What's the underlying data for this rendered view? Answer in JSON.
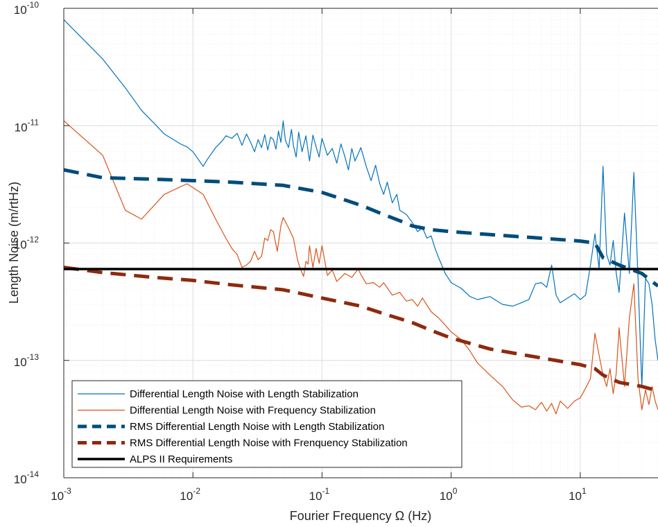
{
  "chart_data": {
    "type": "line",
    "title": "",
    "xlabel": "Fourier Frequency Ω (Hz)",
    "ylabel": "Length Noise (m/rtHz)",
    "x_scale": "log",
    "y_scale": "log",
    "xlim": [
      0.001,
      40
    ],
    "ylim": [
      1e-14,
      1e-10
    ],
    "grid": true,
    "minor_grid": true,
    "legend_position": "bottom-left",
    "x_ticks": [
      {
        "base": "10",
        "exp": "-3",
        "value": 0.001
      },
      {
        "base": "10",
        "exp": "-2",
        "value": 0.01
      },
      {
        "base": "10",
        "exp": "-1",
        "value": 0.1
      },
      {
        "base": "10",
        "exp": "0",
        "value": 1
      },
      {
        "base": "10",
        "exp": "1",
        "value": 10
      }
    ],
    "y_ticks": [
      {
        "base": "10",
        "exp": "-10",
        "value": 1e-10
      },
      {
        "base": "10",
        "exp": "-11",
        "value": 1e-11
      },
      {
        "base": "10",
        "exp": "-12",
        "value": 1e-12
      },
      {
        "base": "10",
        "exp": "-13",
        "value": 1e-13
      },
      {
        "base": "10",
        "exp": "-14",
        "value": 1e-14
      }
    ],
    "series": [
      {
        "name": "Differential Length Noise with Length Stabilization",
        "color": "#0072BD",
        "style": "solid",
        "width": 1.2,
        "x": [
          0.001,
          0.002,
          0.003,
          0.004,
          0.005,
          0.006,
          0.008,
          0.009,
          0.01,
          0.012,
          0.013,
          0.015,
          0.017,
          0.018,
          0.02,
          0.022,
          0.024,
          0.026,
          0.028,
          0.03,
          0.032,
          0.034,
          0.036,
          0.038,
          0.04,
          0.042,
          0.044,
          0.046,
          0.048,
          0.05,
          0.052,
          0.055,
          0.058,
          0.06,
          0.063,
          0.066,
          0.07,
          0.075,
          0.08,
          0.085,
          0.09,
          0.095,
          0.1,
          0.11,
          0.12,
          0.13,
          0.14,
          0.15,
          0.16,
          0.17,
          0.18,
          0.2,
          0.22,
          0.24,
          0.26,
          0.28,
          0.3,
          0.32,
          0.35,
          0.38,
          0.4,
          0.45,
          0.5,
          0.55,
          0.6,
          0.65,
          0.7,
          0.75,
          0.8,
          0.9,
          1.0,
          1.2,
          1.4,
          1.6,
          2.0,
          2.5,
          3.0,
          3.5,
          4.0,
          4.5,
          5.0,
          5.5,
          6.0,
          6.5,
          7.0,
          8.0,
          9.0,
          10.0,
          11.0,
          12.0,
          13.0,
          14.0,
          15.0,
          16.0,
          17.0,
          18.0,
          19.0,
          20.0,
          22.0,
          24.0,
          26.0,
          28.0,
          30.0,
          32.0,
          34.0,
          36.0,
          38.0,
          40.0
        ],
        "y": [
          8e-11,
          3.7e-11,
          2.1e-11,
          1.35e-11,
          1.05e-11,
          8.5e-12,
          7e-12,
          6.6e-12,
          6e-12,
          4.5e-12,
          5.2e-12,
          6.5e-12,
          7.5e-12,
          8.2e-12,
          7.8e-12,
          8.6e-12,
          6.8e-12,
          8.5e-12,
          7.2e-12,
          6e-12,
          7.6e-12,
          6.5e-12,
          8.4e-12,
          6.2e-12,
          8e-12,
          7.6e-12,
          6.3e-12,
          9e-12,
          7.2e-12,
          1.1e-11,
          7.5e-12,
          6.5e-12,
          9.3e-12,
          6.8e-12,
          5.4e-12,
          8.8e-12,
          6e-12,
          8.2e-12,
          5e-12,
          8.3e-12,
          6.6e-12,
          5.4e-12,
          7.8e-12,
          5.6e-12,
          6.4e-12,
          4.8e-12,
          7e-12,
          5.5e-12,
          4.2e-12,
          6.4e-12,
          5e-12,
          6.5e-12,
          4.5e-12,
          3.4e-12,
          4.6e-12,
          3.2e-12,
          2.6e-12,
          3.3e-12,
          2.2e-12,
          2.6e-12,
          1.9e-12,
          1.75e-12,
          1.5e-12,
          1.25e-12,
          1.35e-12,
          1.1e-12,
          1.15e-12,
          9e-13,
          7.5e-13,
          5.5e-13,
          4.6e-13,
          4.1e-13,
          3.5e-13,
          3.3e-13,
          3.5e-13,
          3e-13,
          2.9e-13,
          3.1e-13,
          3.3e-13,
          4.5e-13,
          4.6e-13,
          4.2e-13,
          6.5e-13,
          3.6e-13,
          3.1e-13,
          3.4e-13,
          3.7e-13,
          3.3e-13,
          3.6e-13,
          6.5e-13,
          1.2e-12,
          6e-13,
          4.5e-12,
          8e-13,
          6.5e-13,
          1.05e-12,
          5.5e-13,
          3.8e-13,
          1.8e-12,
          5.5e-13,
          4e-12,
          5e-13,
          6e-14,
          5e-13,
          4.5e-13,
          3e-13,
          1.5e-13,
          1e-13
        ]
      },
      {
        "name": "Differential Length Noise with Frequency Stabilization",
        "color": "#D95319",
        "style": "solid",
        "width": 1.2,
        "x": [
          0.001,
          0.002,
          0.003,
          0.004,
          0.006,
          0.009,
          0.012,
          0.015,
          0.018,
          0.02,
          0.022,
          0.024,
          0.026,
          0.028,
          0.03,
          0.032,
          0.034,
          0.036,
          0.038,
          0.04,
          0.042,
          0.045,
          0.048,
          0.05,
          0.055,
          0.06,
          0.065,
          0.068,
          0.072,
          0.075,
          0.078,
          0.08,
          0.085,
          0.09,
          0.095,
          0.1,
          0.11,
          0.12,
          0.13,
          0.15,
          0.17,
          0.19,
          0.2,
          0.22,
          0.25,
          0.28,
          0.3,
          0.35,
          0.4,
          0.45,
          0.5,
          0.55,
          0.6,
          0.7,
          0.8,
          0.9,
          1.0,
          1.2,
          1.4,
          1.6,
          2.0,
          2.5,
          3.0,
          3.5,
          4.0,
          4.5,
          5.0,
          5.5,
          6.0,
          6.5,
          7.0,
          8.0,
          9.0,
          10.0,
          11.0,
          12.0,
          13.0,
          14.0,
          15.0,
          16.0,
          17.0,
          18.0,
          19.0,
          20.0,
          22.0,
          24.0,
          26.0,
          28.0,
          30.0,
          32.0,
          34.0,
          36.0,
          38.0,
          40.0
        ],
        "y": [
          1.1e-11,
          5.6e-12,
          1.9e-12,
          1.6e-12,
          2.6e-12,
          3.2e-12,
          2.6e-12,
          1.6e-12,
          1.1e-12,
          9e-13,
          8e-13,
          6.2e-13,
          6.5e-13,
          7e-13,
          8.5e-13,
          7.2e-13,
          7.7e-13,
          1.1e-12,
          1.05e-12,
          1.3e-12,
          1.25e-12,
          8.5e-13,
          1.4e-12,
          1.65e-12,
          1.35e-12,
          1.1e-12,
          7e-13,
          6e-13,
          5.2e-13,
          7e-13,
          6.6e-13,
          9.5e-13,
          6.2e-13,
          9e-13,
          6.7e-13,
          9.5e-13,
          5.3e-13,
          5.9e-13,
          4.7e-13,
          5.5e-13,
          5.1e-13,
          6e-13,
          5.4e-13,
          4.5e-13,
          4.6e-13,
          4.2e-13,
          4.6e-13,
          3.6e-13,
          3.8e-13,
          3.2e-13,
          3.3e-13,
          2.9e-13,
          3.4e-13,
          2.6e-13,
          2.3e-13,
          2e-13,
          1.75e-13,
          1.5e-13,
          1.2e-13,
          9.5e-14,
          7.5e-14,
          6e-14,
          4.6e-14,
          4e-14,
          4.1e-14,
          3.8e-14,
          4.4e-14,
          3.7e-14,
          4.3e-14,
          3.5e-14,
          4.5e-14,
          3.9e-14,
          4.5e-14,
          4.8e-14,
          5.8e-14,
          7e-14,
          1.7e-13,
          1.1e-13,
          7.5e-14,
          6e-14,
          8.5e-14,
          5.2e-14,
          7.8e-14,
          1.9e-13,
          6e-14,
          2.3e-13,
          4.5e-13,
          7e-14,
          3.8e-14,
          5.6e-14,
          4.2e-14,
          6e-14,
          4.5e-14,
          3.8e-14
        ]
      },
      {
        "name": "RMS Differential Length Noise with Length Stabilization",
        "color": "#004C7A",
        "style": "dashed",
        "width": 5,
        "x": [
          0.001,
          0.002,
          0.005,
          0.01,
          0.02,
          0.05,
          0.1,
          0.2,
          0.3,
          0.4,
          0.5,
          0.7,
          1.0,
          2.0,
          5.0,
          10.0,
          13.0,
          15.0,
          20.0,
          30.0,
          40.0
        ],
        "y": [
          4.2e-12,
          3.6e-12,
          3.5e-12,
          3.4e-12,
          3.3e-12,
          3.1e-12,
          2.7e-12,
          2.1e-12,
          1.75e-12,
          1.55e-12,
          1.4e-12,
          1.3e-12,
          1.25e-12,
          1.18e-12,
          1.1e-12,
          1.04e-12,
          1e-12,
          7.5e-13,
          6.5e-13,
          5.5e-13,
          4.3e-13
        ]
      },
      {
        "name": "RMS Differential Length Noise with Frenquency Stabilization",
        "color": "#8E2A0E",
        "style": "dashed",
        "width": 5,
        "x": [
          0.001,
          0.002,
          0.005,
          0.01,
          0.02,
          0.05,
          0.1,
          0.2,
          0.3,
          0.5,
          0.7,
          1.0,
          2.0,
          5.0,
          10.0,
          13.0,
          15.0,
          20.0,
          30.0,
          40.0
        ],
        "y": [
          6.2e-13,
          5.6e-13,
          5.1e-13,
          4.8e-13,
          4.4e-13,
          4e-13,
          3.4e-13,
          2.9e-13,
          2.5e-13,
          2.1e-13,
          1.8e-13,
          1.55e-13,
          1.25e-13,
          1.05e-13,
          9.2e-14,
          8.5e-14,
          7.5e-14,
          6.5e-14,
          6e-14,
          5.5e-14
        ]
      },
      {
        "name": "ALPS II Requirements",
        "color": "#000000",
        "style": "solid",
        "width": 3.5,
        "x": [
          0.001,
          40.0
        ],
        "y": [
          6e-13,
          6e-13
        ]
      }
    ]
  }
}
